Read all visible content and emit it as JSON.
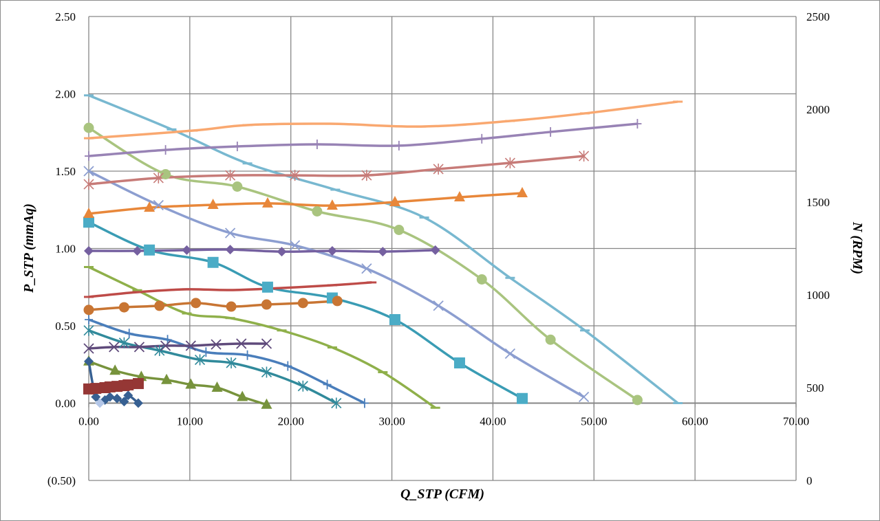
{
  "chart_data": {
    "type": "line",
    "title": "",
    "xlabel": "Q_STP (CFM)",
    "ylabel": "P_STP (mmAq)",
    "y2label": "N (RPM)",
    "xlim": [
      0,
      70
    ],
    "ylim": [
      -0.5,
      2.5
    ],
    "y2lim": [
      0,
      2500
    ],
    "grid": true,
    "legend": "none",
    "x_ticks": [
      "0.00",
      "10.00",
      "20.00",
      "30.00",
      "40.00",
      "50.00",
      "60.00",
      "70.00"
    ],
    "y_ticks": [
      "(0.50)",
      "0.00",
      "0.50",
      "1.00",
      "1.50",
      "2.00",
      "2.50"
    ],
    "y2_ticks": [
      "0",
      "500",
      "1000",
      "1500",
      "2000",
      "2500"
    ],
    "negative_tick_color": "#ff0000",
    "series": [
      {
        "name": "P light blue",
        "axis": "left",
        "color": "#78b8d0",
        "marker": "dash",
        "x": [
          0,
          8.2,
          15.7,
          24.4,
          33.2,
          41.7,
          49.1,
          58.3
        ],
        "y": [
          1.99,
          1.77,
          1.55,
          1.38,
          1.2,
          0.81,
          0.47,
          0.0
        ]
      },
      {
        "name": "P light green",
        "axis": "left",
        "color": "#a9c47f",
        "marker": "circle",
        "x": [
          0,
          7.6,
          14.7,
          22.6,
          30.7,
          38.9,
          45.7,
          54.3
        ],
        "y": [
          1.78,
          1.48,
          1.4,
          1.24,
          1.12,
          0.8,
          0.41,
          0.02
        ]
      },
      {
        "name": "P lavender",
        "axis": "left",
        "color": "#8c9ed0",
        "marker": "x",
        "x": [
          0,
          6.9,
          14.0,
          20.4,
          27.5,
          34.6,
          41.7,
          49.0
        ],
        "y": [
          1.5,
          1.28,
          1.1,
          1.02,
          0.87,
          0.63,
          0.32,
          0.04
        ]
      },
      {
        "name": "P teal square",
        "axis": "left",
        "color": "#3a9cb4",
        "markerColor": "#4bacc6",
        "marker": "square",
        "x": [
          0,
          6.0,
          12.3,
          17.7,
          24.1,
          30.3,
          36.7,
          42.9
        ],
        "y": [
          1.17,
          0.99,
          0.91,
          0.75,
          0.68,
          0.54,
          0.26,
          0.03
        ]
      },
      {
        "name": "P olive",
        "axis": "left",
        "color": "#8fb04a",
        "marker": "dash",
        "x": [
          0,
          4.8,
          9.7,
          14.0,
          19.1,
          24.1,
          29.1,
          34.3
        ],
        "y": [
          0.88,
          0.73,
          0.58,
          0.55,
          0.47,
          0.36,
          0.2,
          -0.03
        ]
      },
      {
        "name": "P blue plus",
        "axis": "left",
        "color": "#4a7ebb",
        "marker": "plus",
        "x": [
          0,
          4.0,
          7.8,
          11.6,
          15.7,
          19.7,
          23.6,
          27.3
        ],
        "y": [
          0.54,
          0.45,
          0.41,
          0.33,
          0.31,
          0.24,
          0.12,
          0.0
        ]
      },
      {
        "name": "P teal star",
        "axis": "left",
        "color": "#318a9b",
        "marker": "star",
        "x": [
          0,
          3.5,
          7.0,
          11.0,
          14.1,
          17.6,
          21.2,
          24.5
        ],
        "y": [
          0.47,
          0.39,
          0.34,
          0.28,
          0.26,
          0.2,
          0.11,
          0.0
        ]
      },
      {
        "name": "P green triangle",
        "axis": "left",
        "color": "#77933c",
        "marker": "triangle",
        "x": [
          0,
          2.6,
          5.2,
          7.7,
          10.1,
          12.7,
          15.2,
          17.6
        ],
        "y": [
          0.27,
          0.21,
          0.17,
          0.15,
          0.12,
          0.1,
          0.04,
          -0.01
        ]
      },
      {
        "name": "P dark blue diamond",
        "axis": "left",
        "color": "#376092",
        "marker": "diamond",
        "x": [
          0,
          0.7,
          1.6,
          2.1,
          2.8,
          3.5,
          3.9,
          4.9
        ],
        "y": [
          0.27,
          0.04,
          0.02,
          0.04,
          0.03,
          0.01,
          0.05,
          0.0
        ]
      },
      {
        "name": "P light blue diamond",
        "axis": "left",
        "color": "#b3c6e7",
        "marker": "diamond",
        "x": [
          1.1
        ],
        "y": [
          0.0
        ]
      },
      {
        "name": "N light orange",
        "axis": "right",
        "color": "#f9a870",
        "marker": "dash",
        "x": [
          0,
          10.3,
          15.7,
          23.9,
          32.9,
          41.7,
          49.1,
          58.3
        ],
        "y": [
          1844,
          1885,
          1915,
          1922,
          1907,
          1937,
          1978,
          2041
        ]
      },
      {
        "name": "N purple plus",
        "axis": "right",
        "color": "#9883b5",
        "marker": "plus",
        "x": [
          0,
          7.6,
          14.7,
          22.6,
          30.7,
          38.9,
          45.7,
          54.3
        ],
        "y": [
          1748,
          1781,
          1800,
          1811,
          1804,
          1841,
          1878,
          1922
        ]
      },
      {
        "name": "N pink star",
        "axis": "right",
        "color": "#c77b78",
        "marker": "star",
        "x": [
          0,
          6.9,
          14.0,
          20.4,
          27.5,
          34.6,
          41.7,
          49.0
        ],
        "y": [
          1596,
          1630,
          1644,
          1644,
          1644,
          1678,
          1711,
          1748
        ]
      },
      {
        "name": "N orange triangle",
        "axis": "right",
        "color": "#e8873a",
        "marker": "triangle",
        "x": [
          0,
          6.0,
          12.3,
          17.7,
          24.1,
          30.3,
          36.7,
          42.9
        ],
        "y": [
          1437,
          1470,
          1485,
          1493,
          1481,
          1500,
          1526,
          1548
        ]
      },
      {
        "name": "N purple diamond",
        "axis": "right",
        "color": "#7560a0",
        "marker": "diamond",
        "x": [
          0,
          4.8,
          9.7,
          14.0,
          19.1,
          24.1,
          29.1,
          34.3
        ],
        "y": [
          1237,
          1237,
          1241,
          1244,
          1233,
          1237,
          1233,
          1241
        ]
      },
      {
        "name": "N red",
        "axis": "right",
        "color": "#be4b48",
        "marker": "dash",
        "x": [
          0,
          4.8,
          9.7,
          14.0,
          19.1,
          24.1,
          28.0
        ],
        "y": [
          989,
          1015,
          1030,
          1026,
          1037,
          1052,
          1067
        ]
      },
      {
        "name": "N orange circle",
        "axis": "right",
        "color": "#c87533",
        "marker": "circle",
        "x": [
          0,
          3.5,
          7.0,
          10.6,
          14.1,
          17.6,
          21.2,
          24.6
        ],
        "y": [
          919,
          933,
          941,
          956,
          937,
          948,
          956,
          967
        ]
      },
      {
        "name": "N purple x",
        "axis": "right",
        "color": "#5f4a7b",
        "marker": "x",
        "x": [
          0,
          2.5,
          5.0,
          7.6,
          10.1,
          12.6,
          15.1,
          17.6
        ],
        "y": [
          711,
          719,
          719,
          726,
          726,
          733,
          737,
          737
        ]
      },
      {
        "name": "N red square",
        "axis": "right",
        "color": "#953735",
        "marker": "square",
        "x": [
          0,
          0.7,
          1.6,
          2.1,
          2.8,
          3.5,
          3.9,
          4.9
        ],
        "y": [
          493,
          496,
          500,
          504,
          507,
          511,
          515,
          522
        ]
      }
    ]
  }
}
